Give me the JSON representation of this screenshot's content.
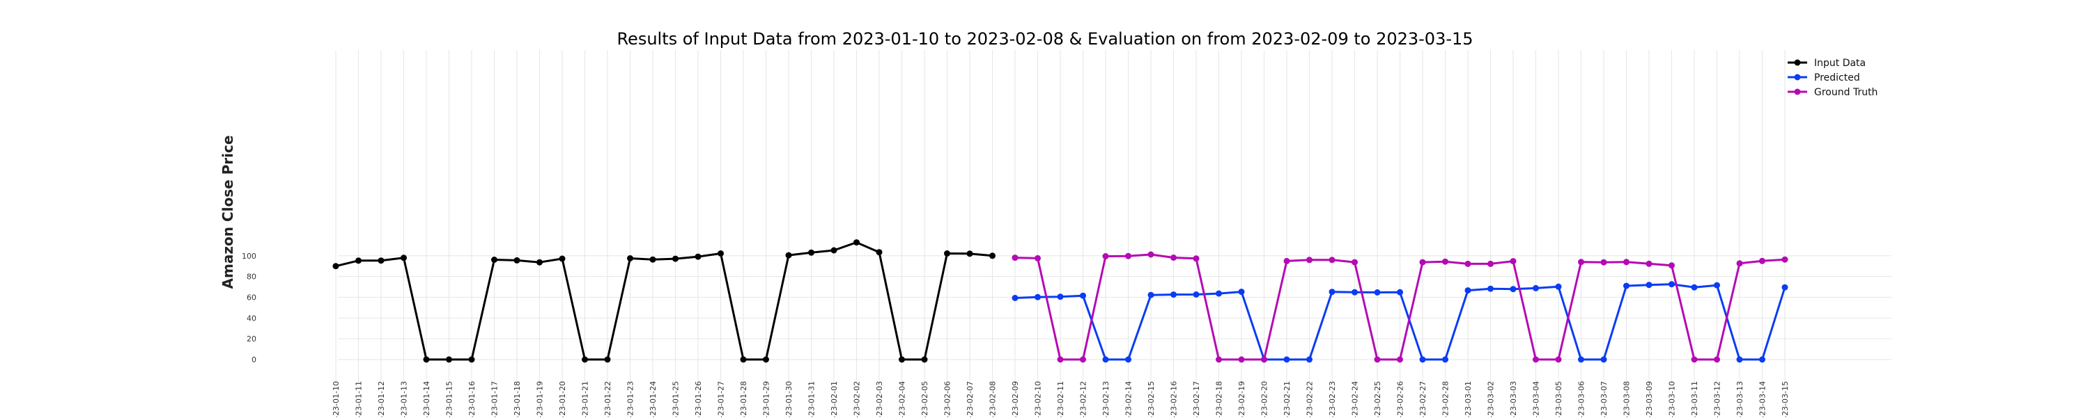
{
  "chart_data": {
    "type": "line",
    "title": "Results of Input Data from 2023-01-10 to 2023-02-08 & Evaluation on from 2023-02-09 to 2023-03-15",
    "xlabel": "",
    "ylabel": "Amazon Close Price",
    "ylim": [
      -7,
      120
    ],
    "yticks": [
      0,
      20,
      40,
      60,
      80,
      100
    ],
    "grid": true,
    "legend_position": "top-right",
    "x": [
      "-23-01-10",
      "-23-01-11",
      "-23-01-12",
      "-23-01-13",
      "-23-01-14",
      "-23-01-15",
      "-23-01-16",
      "-23-01-17",
      "-23-01-18",
      "-23-01-19",
      "-23-01-20",
      "-23-01-21",
      "-23-01-22",
      "-23-01-23",
      "-23-01-24",
      "-23-01-25",
      "-23-01-26",
      "-23-01-27",
      "-23-01-28",
      "-23-01-29",
      "-23-01-30",
      "-23-01-31",
      "-23-02-01",
      "-23-02-02",
      "-23-02-03",
      "-23-02-04",
      "-23-02-05",
      "-23-02-06",
      "-23-02-07",
      "-23-02-08",
      "-23-02-09",
      "-23-02-10",
      "-23-02-11",
      "-23-02-12",
      "-23-02-13",
      "-23-02-14",
      "-23-02-15",
      "-23-02-16",
      "-23-02-17",
      "-23-02-18",
      "-23-02-19",
      "-23-02-20",
      "-23-02-21",
      "-23-02-22",
      "-23-02-23",
      "-23-02-24",
      "-23-02-25",
      "-23-02-26",
      "-23-02-27",
      "-23-02-28",
      "-23-03-01",
      "-23-03-02",
      "-23-03-03",
      "-23-03-04",
      "-23-03-05",
      "-23-03-06",
      "-23-03-07",
      "-23-03-08",
      "-23-03-09",
      "-23-03-10",
      "-23-03-11",
      "-23-03-12",
      "-23-03-13",
      "-23-03-14",
      "-23-03-15"
    ],
    "series": [
      {
        "name": "Input Data",
        "color": "#000000",
        "x": [
          "-23-01-10",
          "-23-01-11",
          "-23-01-12",
          "-23-01-13",
          "-23-01-14",
          "-23-01-15",
          "-23-01-16",
          "-23-01-17",
          "-23-01-18",
          "-23-01-19",
          "-23-01-20",
          "-23-01-21",
          "-23-01-22",
          "-23-01-23",
          "-23-01-24",
          "-23-01-25",
          "-23-01-26",
          "-23-01-27",
          "-23-01-28",
          "-23-01-29",
          "-23-01-30",
          "-23-01-31",
          "-23-02-01",
          "-23-02-02",
          "-23-02-03",
          "-23-02-04",
          "-23-02-05",
          "-23-02-06",
          "-23-02-07",
          "-23-02-08"
        ],
        "values": [
          90,
          95.3,
          95.4,
          98,
          0,
          0,
          0,
          96.2,
          95.6,
          93.7,
          97.2,
          0,
          0,
          97.5,
          96.4,
          97.1,
          99.1,
          102.2,
          0,
          0,
          100.5,
          103.1,
          105.2,
          112.9,
          103.4,
          0,
          0,
          102.2,
          102,
          100
        ]
      },
      {
        "name": "Predicted",
        "color": "#0a3cf5",
        "x": [
          "-23-02-09",
          "-23-02-10",
          "-23-02-11",
          "-23-02-12",
          "-23-02-13",
          "-23-02-14",
          "-23-02-15",
          "-23-02-16",
          "-23-02-17",
          "-23-02-18",
          "-23-02-19",
          "-23-02-20",
          "-23-02-21",
          "-23-02-22",
          "-23-02-23",
          "-23-02-24",
          "-23-02-25",
          "-23-02-26",
          "-23-02-27",
          "-23-02-28",
          "-23-03-01",
          "-23-03-02",
          "-23-03-03",
          "-23-03-04",
          "-23-03-05",
          "-23-03-06",
          "-23-03-07",
          "-23-03-08",
          "-23-03-09",
          "-23-03-10",
          "-23-03-11",
          "-23-03-12",
          "-23-03-13",
          "-23-03-14",
          "-23-03-15"
        ],
        "values": [
          59.3,
          60.1,
          60.5,
          61.5,
          0,
          0,
          62.2,
          62.6,
          62.7,
          63.6,
          65.3,
          0,
          0,
          0,
          65.2,
          64.8,
          64.7,
          64.8,
          0,
          0,
          66.6,
          68.2,
          67.9,
          68.8,
          70.2,
          0,
          0,
          71,
          71.9,
          72.6,
          69.6,
          71.6,
          0,
          0,
          69.6
        ]
      },
      {
        "name": "Ground Truth",
        "color": "#b40ab4",
        "x": [
          "-23-02-09",
          "-23-02-10",
          "-23-02-11",
          "-23-02-12",
          "-23-02-13",
          "-23-02-14",
          "-23-02-15",
          "-23-02-16",
          "-23-02-17",
          "-23-02-18",
          "-23-02-19",
          "-23-02-20",
          "-23-02-21",
          "-23-02-22",
          "-23-02-23",
          "-23-02-24",
          "-23-02-25",
          "-23-02-26",
          "-23-02-27",
          "-23-02-28",
          "-23-03-01",
          "-23-03-02",
          "-23-03-03",
          "-23-03-04",
          "-23-03-05",
          "-23-03-06",
          "-23-03-07",
          "-23-03-08",
          "-23-03-09",
          "-23-03-10",
          "-23-03-11",
          "-23-03-12",
          "-23-03-13",
          "-23-03-14",
          "-23-03-15"
        ],
        "values": [
          98.1,
          97.6,
          0,
          0,
          99.5,
          99.7,
          101.2,
          98.2,
          97.3,
          0,
          0,
          0,
          94.9,
          96,
          96,
          93.8,
          0,
          0,
          93.8,
          94.4,
          92.2,
          92.2,
          94.8,
          0,
          0,
          94,
          93.7,
          94,
          92.3,
          90.7,
          0,
          0,
          92.6,
          95,
          96.4
        ]
      }
    ]
  }
}
